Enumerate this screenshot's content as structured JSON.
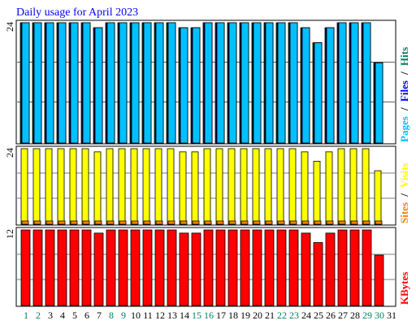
{
  "chart_data": {
    "type": "bar",
    "title": "Daily usage for April 2023",
    "colors": {
      "hits": "#00805c",
      "files": "#0000ff",
      "pages": "#00c0ff",
      "visits": "#ffff00",
      "sites": "#ff8000",
      "kbytes": "#ff0000",
      "title": "#0000ff",
      "weekend_label": "#00805c",
      "weekday_label": "#000000"
    },
    "days": [
      "1",
      "2",
      "3",
      "4",
      "5",
      "6",
      "7",
      "8",
      "9",
      "10",
      "11",
      "12",
      "13",
      "14",
      "15",
      "16",
      "17",
      "18",
      "19",
      "20",
      "21",
      "22",
      "23",
      "24",
      "25",
      "26",
      "27",
      "28",
      "29",
      "30",
      "31"
    ],
    "weekend_days": [
      "1",
      "2",
      "8",
      "9",
      "15",
      "16",
      "22",
      "23",
      "29",
      "30"
    ],
    "panels": {
      "hits_files_pages": {
        "max_label": "24",
        "ymax": 24,
        "series_labels": [
          "Pages",
          "/",
          "Files",
          "/",
          "Hits"
        ],
        "hits": [
          24,
          24,
          24,
          24,
          24,
          24,
          23,
          24,
          24,
          24,
          24,
          24,
          24,
          23,
          23,
          24,
          24,
          24,
          24,
          24,
          24,
          24,
          24,
          23,
          20,
          23,
          24,
          24,
          24,
          16
        ],
        "files": [
          24,
          24,
          24,
          24,
          24,
          24,
          23,
          24,
          24,
          24,
          24,
          24,
          24,
          23,
          23,
          24,
          24,
          24,
          24,
          24,
          24,
          24,
          24,
          23,
          20,
          23,
          24,
          24,
          24,
          16
        ],
        "pages": [
          24,
          24,
          24,
          24,
          24,
          24,
          23,
          24,
          24,
          24,
          24,
          24,
          24,
          23,
          23,
          24,
          24,
          24,
          24,
          24,
          24,
          24,
          24,
          23,
          20,
          23,
          24,
          24,
          24,
          16
        ]
      },
      "visits_sites": {
        "max_label": "24",
        "ymax": 24,
        "series_labels": [
          "Sites",
          "/",
          "Visits"
        ],
        "visits": [
          24,
          24,
          24,
          24,
          24,
          24,
          23,
          24,
          24,
          24,
          24,
          24,
          24,
          23,
          23,
          24,
          24,
          24,
          24,
          24,
          24,
          24,
          24,
          23,
          20,
          23,
          24,
          24,
          24,
          17
        ],
        "sites": [
          1,
          1,
          1,
          1,
          1,
          1,
          1,
          1,
          1,
          1,
          1,
          1,
          1,
          1,
          1,
          1,
          1,
          1,
          1,
          1,
          1,
          1,
          1,
          1,
          1,
          1,
          1,
          1,
          1,
          1
        ]
      },
      "kbytes": {
        "max_label": "12",
        "ymax": 12,
        "series_labels": [
          "KBytes"
        ],
        "kbytes": [
          12,
          12,
          12,
          12,
          12,
          12,
          11.5,
          12,
          12,
          12,
          12,
          12,
          12,
          11.5,
          11.5,
          12,
          12,
          12,
          12,
          12,
          12,
          12,
          12,
          11.5,
          10,
          11.5,
          12,
          12,
          12,
          8
        ]
      }
    }
  }
}
